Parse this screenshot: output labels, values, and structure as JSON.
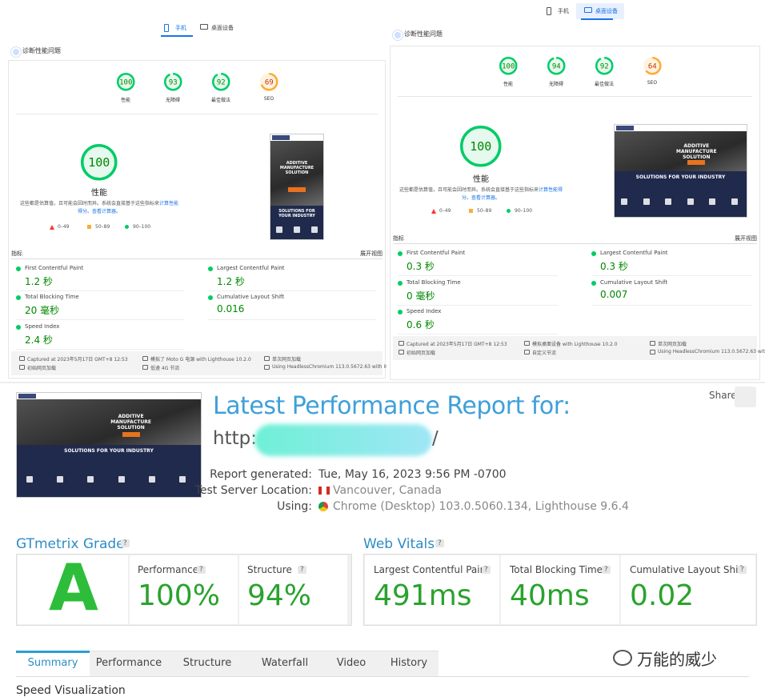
{
  "mobile": {
    "tabs": [
      "手机",
      "桌面设备"
    ],
    "active_tab": 0,
    "section": "诊断性能问题",
    "scores": [
      {
        "label": "性能",
        "value": 100
      },
      {
        "label": "无障碍",
        "value": 93
      },
      {
        "label": "最佳做法",
        "value": 92
      },
      {
        "label": "SEO",
        "value": 69
      }
    ],
    "main_score": {
      "value": 100,
      "label": "性能"
    },
    "note": "这些都是估算值，且可能会因时而异。系统会直接基于这些指标来",
    "note_link": "计算性能得分。",
    "calc_link": "查看计算器。",
    "legend": [
      "0–49",
      "50–89",
      "90–100"
    ],
    "metrics_title": "指标",
    "expand": "展开视图",
    "metrics": [
      {
        "label": "First Contentful Paint",
        "value": "1.2 秒"
      },
      {
        "label": "Largest Contentful Paint",
        "value": "1.2 秒"
      },
      {
        "label": "Total Blocking Time",
        "value": "20 毫秒"
      },
      {
        "label": "Cumulative Layout Shift",
        "value": "0.016"
      },
      {
        "label": "Speed Index",
        "value": "2.4 秒"
      }
    ],
    "footer": [
      "Captured at 2023年5月17日 GMT+8 12:53",
      "模拟了 Moto G 电源 with Lighthouse 10.2.0",
      "单次网页加载",
      "初始网页加载",
      "低速 4G 节流",
      "Using HeadlessChromium 113.0.5672.63 with lr"
    ],
    "screenshot": {
      "heading": "ADDITIVE MANUFACTURE SOLUTION",
      "subheading": "SOLUTIONS FOR YOUR INDUSTRY"
    }
  },
  "desktop": {
    "tabs": [
      "手机",
      "桌面设备"
    ],
    "active_tab": 1,
    "section": "诊断性能问题",
    "scores": [
      {
        "label": "性能",
        "value": 100
      },
      {
        "label": "无障碍",
        "value": 94
      },
      {
        "label": "最佳做法",
        "value": 92
      },
      {
        "label": "SEO",
        "value": 64
      }
    ],
    "main_score": {
      "value": 100,
      "label": "性能"
    },
    "note": "这些都是估算值，且可能会因时而异。系统会直接基于这些指标来",
    "note_link": "计算性能得分。",
    "calc_link": "查看计算器。",
    "legend": [
      "0–49",
      "50–89",
      "90–100"
    ],
    "metrics_title": "指标",
    "expand": "展开视图",
    "metrics": [
      {
        "label": "First Contentful Paint",
        "value": "0.3 秒"
      },
      {
        "label": "Largest Contentful Paint",
        "value": "0.3 秒"
      },
      {
        "label": "Total Blocking Time",
        "value": "0 毫秒"
      },
      {
        "label": "Cumulative Layout Shift",
        "value": "0.007"
      },
      {
        "label": "Speed Index",
        "value": "0.6 秒"
      }
    ],
    "footer": [
      "Captured at 2023年5月17日 GMT+8 12:53",
      "模拟桌面设备 with Lighthouse 10.2.0",
      "单次网页加载",
      "初始网页加载",
      "自定义节流",
      "Using HeadlessChromium 113.0.5672.63 with lr"
    ],
    "screenshot": {
      "heading": "ADDITIVE MANUFACTURE SOLUTION",
      "subheading": "SOLUTIONS FOR YOUR INDUSTRY"
    }
  },
  "gtmetrix": {
    "title": "Latest Performance Report for:",
    "url_prefix": "http:",
    "url_suffix": "/",
    "share": "Share",
    "report": [
      {
        "label": "Report generated:",
        "value": "Tue, May 16, 2023 9:56 PM -0700"
      },
      {
        "label": "Test Server Location:",
        "value": "Vancouver, Canada"
      },
      {
        "label": "Using:",
        "value": "Chrome (Desktop) 103.0.5060.134, Lighthouse 9.6.4"
      }
    ],
    "grade_title": "GTmetrix Grade",
    "help": "?",
    "grade": "A",
    "grade_metrics": [
      {
        "label": "Performance",
        "value": "100%"
      },
      {
        "label": "Structure",
        "value": "94%"
      }
    ],
    "vitals_title": "Web Vitals",
    "vitals": [
      {
        "label": "Largest Contentful Paint",
        "value": "491ms"
      },
      {
        "label": "Total Blocking Time",
        "value": "40ms"
      },
      {
        "label": "Cumulative Layout Shift",
        "value": "0.02"
      }
    ],
    "tabs": [
      "Summary",
      "Performance",
      "Structure",
      "Waterfall",
      "Video",
      "History"
    ],
    "active_tab": 0,
    "next_heading": "Speed Visualization",
    "screenshot": {
      "heading": "ADDITIVE MANUFACTURE SOLUTION",
      "subheading": "SOLUTIONS FOR YOUR INDUSTRY"
    }
  },
  "watermark": "万能的威少"
}
